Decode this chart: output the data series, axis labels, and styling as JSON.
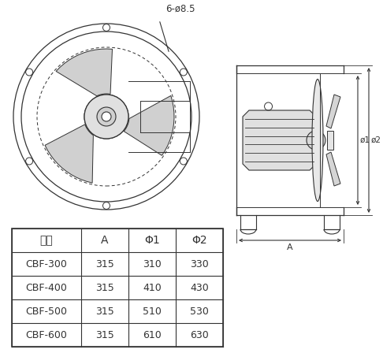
{
  "table_headers": [
    "型号",
    "A",
    "Φ1",
    "Φ2"
  ],
  "table_rows": [
    [
      "CBF-300",
      "315",
      "310",
      "330"
    ],
    [
      "CBF-400",
      "315",
      "410",
      "430"
    ],
    [
      "CBF-500",
      "315",
      "510",
      "530"
    ],
    [
      "CBF-600",
      "315",
      "610",
      "630"
    ]
  ],
  "annotation_hole": "6-ø8.5",
  "dim_label_A": "A",
  "dim_label_phi1": "ø1",
  "dim_label_phi2": "ø2",
  "bg_color": "#ffffff",
  "line_color": "#333333",
  "table_line_color": "#333333",
  "font_size_table": 9,
  "font_size_annot": 8.5
}
